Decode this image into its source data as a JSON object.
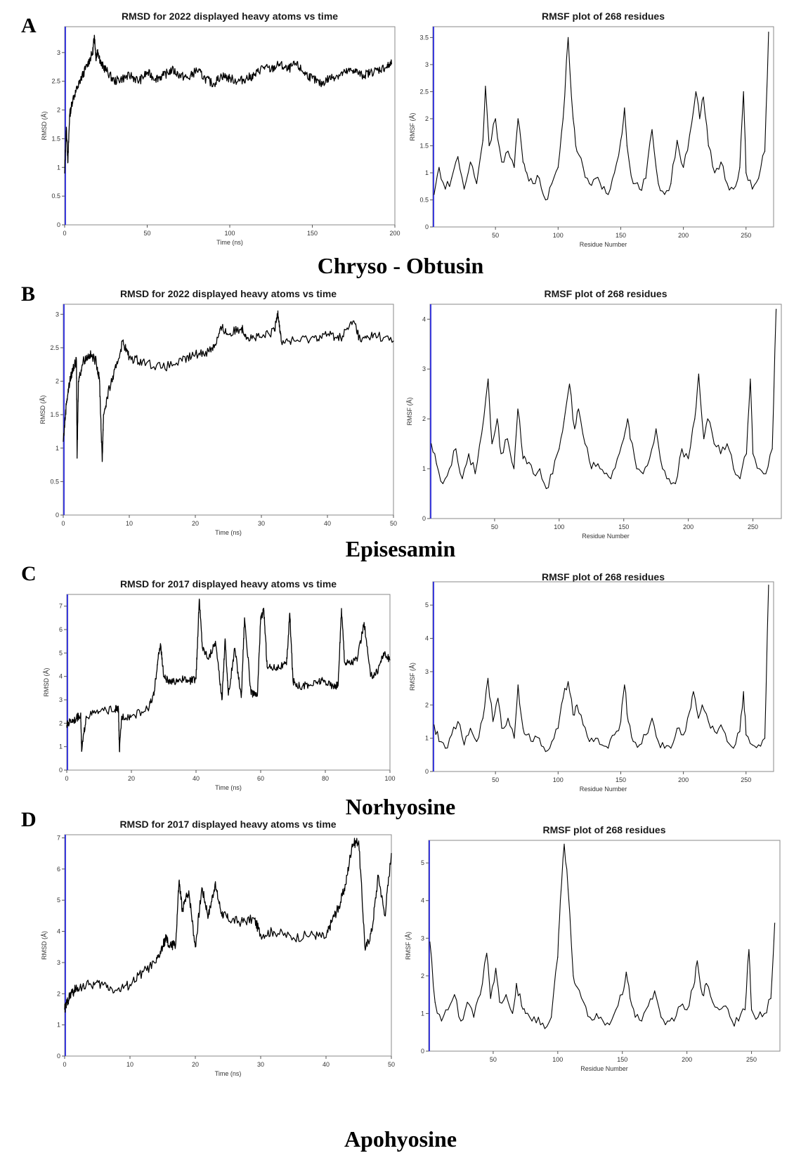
{
  "figure": {
    "panels": [
      {
        "letter": "A",
        "compound": "Chryso - Obtusin"
      },
      {
        "letter": "B",
        "compound": "Episesamin"
      },
      {
        "letter": "C",
        "compound": "Norhyosine"
      },
      {
        "letter": "D",
        "compound": "Apohyosine"
      }
    ]
  },
  "chart_data": [
    {
      "id": "A-rmsd",
      "type": "line",
      "title": "RMSD for 2022 displayed heavy atoms vs time",
      "xlabel": "Time (ns)",
      "ylabel": "RMSD (Å)",
      "xlim": [
        0,
        200
      ],
      "ylim": [
        0,
        3.45
      ],
      "xticks": [
        0,
        50,
        100,
        150,
        200
      ],
      "yticks": [
        0,
        0.5,
        1,
        1.5,
        2,
        2.5,
        3
      ],
      "series": [
        {
          "x": [
            0,
            1,
            2,
            3,
            5,
            8,
            10,
            14,
            17,
            18,
            19,
            20,
            22,
            25,
            30,
            35,
            40,
            45,
            50,
            55,
            60,
            65,
            70,
            75,
            80,
            85,
            90,
            95,
            100,
            105,
            110,
            115,
            120,
            125,
            130,
            135,
            140,
            145,
            150,
            155,
            160,
            165,
            170,
            175,
            180,
            185,
            190,
            195,
            198
          ],
          "y": [
            0.9,
            1.7,
            1.1,
            1.9,
            2.2,
            2.4,
            2.55,
            2.8,
            3.0,
            3.3,
            2.9,
            3.05,
            2.8,
            2.7,
            2.5,
            2.55,
            2.6,
            2.5,
            2.65,
            2.55,
            2.6,
            2.7,
            2.6,
            2.55,
            2.7,
            2.55,
            2.45,
            2.6,
            2.55,
            2.5,
            2.55,
            2.6,
            2.75,
            2.7,
            2.8,
            2.7,
            2.8,
            2.65,
            2.55,
            2.45,
            2.55,
            2.6,
            2.65,
            2.7,
            2.6,
            2.65,
            2.7,
            2.75,
            2.8
          ]
        }
      ]
    },
    {
      "id": "A-rmsf",
      "type": "line",
      "title": "RMSF plot of 268 residues",
      "xlabel": "Residue Number",
      "ylabel": "RMSF (Å)",
      "xlim": [
        0,
        272
      ],
      "ylim": [
        0,
        3.7
      ],
      "xticks": [
        50,
        100,
        150,
        200,
        250
      ],
      "yticks": [
        0,
        0.5,
        1,
        1.5,
        2,
        2.5,
        3,
        3.5
      ],
      "series": [
        {
          "x": [
            1,
            5,
            10,
            15,
            20,
            25,
            30,
            35,
            40,
            42,
            45,
            50,
            55,
            60,
            65,
            68,
            72,
            75,
            80,
            85,
            90,
            95,
            100,
            104,
            108,
            112,
            115,
            120,
            125,
            130,
            135,
            140,
            145,
            150,
            153,
            155,
            160,
            165,
            170,
            175,
            180,
            185,
            190,
            195,
            200,
            205,
            210,
            213,
            216,
            220,
            225,
            230,
            235,
            240,
            245,
            248,
            250,
            255,
            260,
            265,
            268
          ],
          "y": [
            0.6,
            1.1,
            0.7,
            0.9,
            1.3,
            0.7,
            1.2,
            0.8,
            1.6,
            2.6,
            1.5,
            2.0,
            1.2,
            1.4,
            1.1,
            2.0,
            1.2,
            1.0,
            0.8,
            0.9,
            0.5,
            0.8,
            1.1,
            2.0,
            3.5,
            2.0,
            1.4,
            1.1,
            0.8,
            0.9,
            0.7,
            0.6,
            1.0,
            1.6,
            2.2,
            1.5,
            0.8,
            0.7,
            0.9,
            1.8,
            0.8,
            0.6,
            0.8,
            1.6,
            1.1,
            1.7,
            2.5,
            2.0,
            2.4,
            1.5,
            1.0,
            1.2,
            0.8,
            0.7,
            1.1,
            2.5,
            1.0,
            0.7,
            0.9,
            1.4,
            3.6
          ]
        }
      ]
    },
    {
      "id": "B-rmsd",
      "type": "line",
      "title": "RMSD for 2022 displayed heavy atoms vs time",
      "xlabel": "Time (ns)",
      "ylabel": "RMSD (Å)",
      "xlim": [
        0,
        50
      ],
      "ylim": [
        0,
        3.15
      ],
      "xticks": [
        0,
        10,
        20,
        30,
        40,
        50
      ],
      "yticks": [
        0,
        0.5,
        1,
        1.5,
        2,
        2.5,
        3
      ],
      "series": [
        {
          "x": [
            0,
            0.5,
            1,
            1.5,
            2,
            2.1,
            2.3,
            3,
            4,
            5,
            5.5,
            5.9,
            6.1,
            7,
            8,
            9,
            10,
            12,
            15,
            18,
            20,
            22,
            23,
            24,
            25,
            27,
            28,
            30,
            32,
            32.5,
            33,
            35,
            38,
            40,
            42,
            44,
            45,
            47,
            50
          ],
          "y": [
            1.1,
            1.7,
            2.0,
            2.2,
            2.3,
            0.85,
            2.0,
            2.3,
            2.4,
            2.3,
            2.0,
            0.8,
            1.5,
            1.9,
            2.2,
            2.6,
            2.35,
            2.3,
            2.2,
            2.3,
            2.4,
            2.45,
            2.55,
            2.8,
            2.7,
            2.8,
            2.65,
            2.65,
            2.75,
            3.05,
            2.6,
            2.6,
            2.65,
            2.7,
            2.65,
            2.9,
            2.6,
            2.7,
            2.6
          ]
        }
      ]
    },
    {
      "id": "B-rmsf",
      "type": "line",
      "title": "RMSF plot of 268 residues",
      "xlabel": "Residue Number",
      "ylabel": "RMSF (Å)",
      "xlim": [
        0,
        272
      ],
      "ylim": [
        0,
        4.3
      ],
      "xticks": [
        50,
        100,
        150,
        200,
        250
      ],
      "yticks": [
        0,
        1,
        2,
        3,
        4
      ],
      "series": [
        {
          "x": [
            1,
            5,
            10,
            15,
            20,
            25,
            30,
            35,
            40,
            45,
            48,
            52,
            55,
            60,
            65,
            68,
            72,
            75,
            80,
            85,
            90,
            95,
            100,
            104,
            108,
            112,
            115,
            120,
            125,
            130,
            135,
            140,
            145,
            150,
            153,
            155,
            160,
            165,
            170,
            175,
            180,
            185,
            190,
            195,
            200,
            205,
            208,
            212,
            215,
            220,
            225,
            230,
            235,
            240,
            245,
            248,
            250,
            255,
            260,
            265,
            268
          ],
          "y": [
            1.5,
            1.1,
            0.7,
            1.0,
            1.4,
            0.8,
            1.3,
            0.9,
            1.7,
            2.8,
            1.5,
            2.0,
            1.3,
            1.6,
            1.0,
            2.2,
            1.2,
            1.1,
            0.9,
            1.0,
            0.6,
            0.9,
            1.4,
            2.0,
            2.7,
            1.8,
            2.2,
            1.5,
            1.0,
            1.1,
            0.9,
            0.8,
            1.2,
            1.6,
            2.0,
            1.6,
            1.0,
            0.9,
            1.2,
            1.8,
            1.0,
            0.8,
            0.7,
            1.4,
            1.2,
            2.0,
            2.9,
            1.6,
            2.0,
            1.5,
            1.3,
            1.5,
            1.0,
            0.8,
            1.3,
            2.8,
            1.3,
            1.0,
            0.9,
            1.4,
            4.2
          ]
        }
      ]
    },
    {
      "id": "C-rmsd",
      "type": "line",
      "title": "RMSD for 2017 displayed heavy atoms vs time",
      "xlabel": "Time (ns)",
      "ylabel": "RMSD (Å)",
      "xlim": [
        0,
        100
      ],
      "ylim": [
        0,
        7.5
      ],
      "xticks": [
        0,
        20,
        40,
        60,
        80,
        100
      ],
      "yticks": [
        0,
        1,
        2,
        3,
        4,
        5,
        6,
        7
      ],
      "series": [
        {
          "x": [
            0,
            1,
            3,
            4.3,
            4.6,
            6,
            10,
            15,
            16,
            16.3,
            17,
            20,
            25,
            27,
            28,
            29,
            30,
            32,
            35,
            38,
            40,
            41,
            42,
            44,
            46,
            48,
            49,
            50,
            52,
            54,
            55,
            57,
            58,
            59,
            60,
            61,
            62,
            65,
            68,
            69,
            70,
            72,
            75,
            78,
            80,
            83,
            84,
            85,
            86,
            88,
            90,
            92,
            94,
            96,
            98,
            100
          ],
          "y": [
            1.9,
            2.1,
            2.2,
            2.4,
            0.8,
            2.3,
            2.5,
            2.6,
            2.6,
            0.8,
            2.3,
            2.3,
            2.6,
            3.2,
            4.5,
            5.4,
            4.0,
            3.7,
            3.9,
            3.8,
            3.9,
            7.3,
            5.2,
            4.8,
            5.5,
            3.0,
            5.6,
            3.2,
            5.2,
            3.1,
            6.5,
            3.3,
            3.2,
            3.2,
            6.5,
            6.8,
            4.4,
            4.4,
            4.5,
            6.7,
            3.8,
            3.6,
            3.6,
            3.8,
            3.8,
            3.5,
            3.7,
            6.9,
            4.6,
            4.6,
            4.8,
            6.3,
            4.0,
            4.2,
            5.0,
            4.7
          ]
        }
      ]
    },
    {
      "id": "C-rmsf",
      "type": "line",
      "title": "RMSF plot of 268 residues",
      "xlabel": "Residue Number",
      "ylabel": "RMSF (Å)",
      "xlim": [
        0,
        272
      ],
      "ylim": [
        0,
        5.7
      ],
      "xticks": [
        50,
        100,
        150,
        200,
        250
      ],
      "yticks": [
        0,
        1,
        2,
        3,
        4,
        5
      ],
      "series": [
        {
          "x": [
            1,
            5,
            10,
            15,
            20,
            25,
            30,
            35,
            40,
            44,
            48,
            52,
            55,
            60,
            65,
            68,
            72,
            75,
            80,
            85,
            90,
            95,
            100,
            104,
            108,
            112,
            115,
            120,
            125,
            130,
            135,
            140,
            145,
            150,
            153,
            156,
            160,
            165,
            170,
            175,
            180,
            185,
            190,
            195,
            200,
            205,
            208,
            212,
            215,
            220,
            225,
            230,
            235,
            240,
            245,
            248,
            250,
            255,
            260,
            265,
            268
          ],
          "y": [
            1.4,
            0.9,
            0.7,
            1.1,
            1.5,
            0.8,
            1.3,
            0.9,
            1.6,
            2.8,
            1.5,
            2.2,
            1.3,
            1.6,
            1.0,
            2.6,
            1.3,
            1.1,
            0.9,
            1.0,
            0.6,
            0.9,
            1.3,
            2.2,
            2.7,
            1.7,
            2.0,
            1.4,
            0.9,
            1.0,
            0.8,
            0.7,
            1.1,
            1.5,
            2.6,
            1.5,
            0.9,
            0.8,
            1.1,
            1.6,
            0.9,
            0.7,
            0.7,
            1.3,
            1.1,
            1.8,
            2.4,
            1.6,
            2.0,
            1.5,
            1.2,
            1.4,
            0.9,
            0.7,
            1.2,
            2.4,
            1.1,
            0.8,
            0.8,
            1.0,
            5.6
          ]
        }
      ]
    },
    {
      "id": "D-rmsd",
      "type": "line",
      "title": "RMSD for 2017 displayed heavy atoms vs time",
      "xlabel": "Time (ns)",
      "ylabel": "RMSD (Å)",
      "xlim": [
        0,
        50
      ],
      "ylim": [
        0,
        7.1
      ],
      "xticks": [
        0,
        10,
        20,
        30,
        40,
        50
      ],
      "yticks": [
        0,
        1,
        2,
        3,
        4,
        5,
        6,
        7
      ],
      "series": [
        {
          "x": [
            0,
            0.5,
            1,
            2,
            4,
            6,
            8,
            10,
            12,
            14,
            15,
            15.5,
            16,
            17,
            17.5,
            18,
            19,
            20,
            21,
            22,
            23,
            24,
            25,
            27,
            29,
            30,
            32,
            35,
            38,
            40,
            41,
            42,
            43,
            44,
            45,
            46,
            47,
            48,
            49,
            50
          ],
          "y": [
            1.5,
            1.8,
            2.0,
            2.2,
            2.3,
            2.3,
            2.1,
            2.3,
            2.7,
            3.0,
            3.5,
            3.8,
            3.5,
            3.6,
            5.6,
            4.7,
            5.3,
            3.5,
            5.4,
            4.5,
            5.5,
            4.6,
            4.4,
            4.3,
            4.4,
            3.9,
            4.0,
            3.8,
            3.9,
            3.8,
            4.4,
            4.8,
            5.5,
            6.8,
            6.9,
            3.4,
            4.0,
            5.8,
            4.5,
            6.5
          ]
        }
      ]
    },
    {
      "id": "D-rmsf",
      "type": "line",
      "title": "RMSF plot of 268 residues",
      "xlabel": "Residue Number",
      "ylabel": "RMSF (Å)",
      "xlim": [
        0,
        272
      ],
      "ylim": [
        0,
        5.6
      ],
      "xticks": [
        50,
        100,
        150,
        200,
        250
      ],
      "yticks": [
        0,
        1,
        2,
        3,
        4,
        5
      ],
      "series": [
        {
          "x": [
            1,
            5,
            10,
            15,
            20,
            25,
            30,
            35,
            40,
            45,
            48,
            52,
            55,
            60,
            65,
            68,
            72,
            75,
            80,
            85,
            90,
            95,
            100,
            102,
            105,
            108,
            112,
            115,
            120,
            125,
            130,
            135,
            140,
            145,
            150,
            153,
            156,
            160,
            165,
            170,
            175,
            180,
            185,
            190,
            195,
            200,
            205,
            208,
            212,
            215,
            220,
            225,
            230,
            235,
            240,
            245,
            248,
            250,
            255,
            260,
            265,
            268
          ],
          "y": [
            2.9,
            1.3,
            0.8,
            1.1,
            1.5,
            0.8,
            1.3,
            0.9,
            1.5,
            2.6,
            1.4,
            2.2,
            1.3,
            1.5,
            1.0,
            1.8,
            1.2,
            1.0,
            0.8,
            0.9,
            0.6,
            0.9,
            2.5,
            4.0,
            5.5,
            4.3,
            2.0,
            1.7,
            1.3,
            0.9,
            1.0,
            0.8,
            0.7,
            1.1,
            1.5,
            2.1,
            1.4,
            0.9,
            0.8,
            1.2,
            1.6,
            0.9,
            0.8,
            0.8,
            1.2,
            1.1,
            1.7,
            2.4,
            1.5,
            1.8,
            1.3,
            1.1,
            1.2,
            0.8,
            0.8,
            1.1,
            2.7,
            1.1,
            0.9,
            1.0,
            1.4,
            3.4
          ]
        }
      ]
    }
  ]
}
